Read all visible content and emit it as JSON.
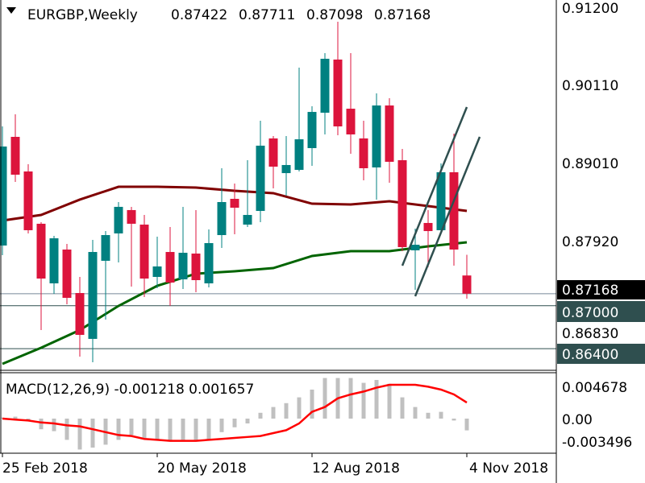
{
  "header": {
    "symbol_timeframe": "EURGBP,Weekly",
    "open": "0.87422",
    "high": "0.87711",
    "low": "0.87098",
    "close": "0.87168",
    "menu_icon": "triangle-down-icon"
  },
  "colors": {
    "bull": "#008080",
    "bear": "#DC143C",
    "ma_slow": "#800000",
    "ma_fast": "#006400",
    "macd_signal": "#FF0000",
    "macd_histogram": "#C0C0C0",
    "hline": "#2F4F4F",
    "bid_line": "#778899",
    "bid_tag": "#000000"
  },
  "price_axis": {
    "ticks": [
      "0.91200",
      "0.90110",
      "0.89010",
      "0.87920",
      "0.86830"
    ],
    "tags": [
      {
        "label": "0.87168",
        "kind": "bid"
      },
      {
        "label": "0.87000",
        "kind": "level"
      },
      {
        "label": "0.86400",
        "kind": "level"
      }
    ]
  },
  "macd_panel": {
    "title": "MACD(12,26,9) -0.001218 0.001657",
    "ticks": [
      "0.004678",
      "0.00",
      "-0.003496"
    ]
  },
  "time_axis": {
    "labels": [
      "25 Feb 2018",
      "20 May 2018",
      "12 Aug 2018",
      "4 Nov 2018"
    ]
  },
  "chart_data": {
    "type": "candlestick",
    "symbol": "EURGBP",
    "timeframe": "Weekly",
    "ylim": [
      0.8605,
      0.9125
    ],
    "candles": [
      {
        "date": "2018-02-25",
        "o": 0.8784,
        "h": 0.89503,
        "l": 0.87705,
        "c": 0.89222
      },
      {
        "date": "2018-03-04",
        "o": 0.89357,
        "h": 0.89672,
        "l": 0.88728,
        "c": 0.88829
      },
      {
        "date": "2018-03-11",
        "o": 0.88874,
        "h": 0.88975,
        "l": 0.88009,
        "c": 0.88054
      },
      {
        "date": "2018-03-18",
        "o": 0.88144,
        "h": 0.88166,
        "l": 0.8666,
        "c": 0.87379
      },
      {
        "date": "2018-03-25",
        "o": 0.87312,
        "h": 0.87975,
        "l": 0.87166,
        "c": 0.87941
      },
      {
        "date": "2018-04-01",
        "o": 0.87784,
        "h": 0.87863,
        "l": 0.8702,
        "c": 0.8711
      },
      {
        "date": "2018-04-08",
        "o": 0.87177,
        "h": 0.87402,
        "l": 0.86289,
        "c": 0.86593
      },
      {
        "date": "2018-04-15",
        "o": 0.86537,
        "h": 0.87919,
        "l": 0.86211,
        "c": 0.8775
      },
      {
        "date": "2018-04-22",
        "o": 0.87627,
        "h": 0.88042,
        "l": 0.86806,
        "c": 0.87986
      },
      {
        "date": "2018-04-29",
        "o": 0.88009,
        "h": 0.88447,
        "l": 0.87604,
        "c": 0.8838
      },
      {
        "date": "2018-05-06",
        "o": 0.88335,
        "h": 0.8838,
        "l": 0.87267,
        "c": 0.88144
      },
      {
        "date": "2018-05-13",
        "o": 0.88132,
        "h": 0.88267,
        "l": 0.87121,
        "c": 0.87379
      },
      {
        "date": "2018-05-20",
        "o": 0.87402,
        "h": 0.87964,
        "l": 0.87245,
        "c": 0.87548
      },
      {
        "date": "2018-05-27",
        "o": 0.8775,
        "h": 0.88099,
        "l": 0.86997,
        "c": 0.87323
      },
      {
        "date": "2018-06-03",
        "o": 0.87368,
        "h": 0.8838,
        "l": 0.87233,
        "c": 0.87739
      },
      {
        "date": "2018-06-10",
        "o": 0.87728,
        "h": 0.88335,
        "l": 0.87188,
        "c": 0.87357
      },
      {
        "date": "2018-06-17",
        "o": 0.87312,
        "h": 0.88065,
        "l": 0.87256,
        "c": 0.87874
      },
      {
        "date": "2018-06-24",
        "o": 0.87986,
        "h": 0.88919,
        "l": 0.87806,
        "c": 0.88447
      },
      {
        "date": "2018-07-01",
        "o": 0.88492,
        "h": 0.88705,
        "l": 0.87997,
        "c": 0.88368
      },
      {
        "date": "2018-07-08",
        "o": 0.88132,
        "h": 0.89031,
        "l": 0.88099,
        "c": 0.88267
      },
      {
        "date": "2018-07-15",
        "o": 0.88323,
        "h": 0.89582,
        "l": 0.88166,
        "c": 0.89234
      },
      {
        "date": "2018-07-22",
        "o": 0.89335,
        "h": 0.89368,
        "l": 0.88638,
        "c": 0.88941
      },
      {
        "date": "2018-07-29",
        "o": 0.88851,
        "h": 0.89368,
        "l": 0.88537,
        "c": 0.88964
      },
      {
        "date": "2018-08-05",
        "o": 0.88896,
        "h": 0.90324,
        "l": 0.88874,
        "c": 0.89323
      },
      {
        "date": "2018-08-12",
        "o": 0.892,
        "h": 0.89784,
        "l": 0.88953,
        "c": 0.89705
      },
      {
        "date": "2018-08-19",
        "o": 0.89694,
        "h": 0.90526,
        "l": 0.89391,
        "c": 0.90447
      },
      {
        "date": "2018-08-26",
        "o": 0.90436,
        "h": 0.90964,
        "l": 0.8938,
        "c": 0.89503
      },
      {
        "date": "2018-09-02",
        "o": 0.8975,
        "h": 0.90526,
        "l": 0.89121,
        "c": 0.89391
      },
      {
        "date": "2018-09-09",
        "o": 0.89335,
        "h": 0.89582,
        "l": 0.8875,
        "c": 0.88919
      },
      {
        "date": "2018-09-16",
        "o": 0.8893,
        "h": 0.89964,
        "l": 0.88481,
        "c": 0.89795
      },
      {
        "date": "2018-09-23",
        "o": 0.89795,
        "h": 0.89897,
        "l": 0.88717,
        "c": 0.89009
      },
      {
        "date": "2018-09-30",
        "o": 0.89031,
        "h": 0.89189,
        "l": 0.87761,
        "c": 0.87818
      },
      {
        "date": "2018-10-07",
        "o": 0.87773,
        "h": 0.88076,
        "l": 0.87222,
        "c": 0.87851
      },
      {
        "date": "2018-10-14",
        "o": 0.88155,
        "h": 0.88335,
        "l": 0.87537,
        "c": 0.88042
      },
      {
        "date": "2018-10-21",
        "o": 0.88054,
        "h": 0.88986,
        "l": 0.88009,
        "c": 0.88863
      },
      {
        "date": "2018-10-28",
        "o": 0.88863,
        "h": 0.89402,
        "l": 0.87559,
        "c": 0.87784
      },
      {
        "date": "2018-11-04",
        "o": 0.87422,
        "h": 0.87711,
        "l": 0.87098,
        "c": 0.87168
      }
    ],
    "moving_averages": [
      {
        "color_key": "ma_slow",
        "points": [
          {
            "date": "2018-02-25",
            "v": 0.88188
          },
          {
            "date": "2018-03-18",
            "v": 0.88267
          },
          {
            "date": "2018-04-08",
            "v": 0.88481
          },
          {
            "date": "2018-04-29",
            "v": 0.8866
          },
          {
            "date": "2018-05-20",
            "v": 0.8866
          },
          {
            "date": "2018-06-10",
            "v": 0.88649
          },
          {
            "date": "2018-07-01",
            "v": 0.88604
          },
          {
            "date": "2018-07-22",
            "v": 0.88571
          },
          {
            "date": "2018-08-12",
            "v": 0.88424
          },
          {
            "date": "2018-09-02",
            "v": 0.88413
          },
          {
            "date": "2018-09-23",
            "v": 0.88458
          },
          {
            "date": "2018-10-14",
            "v": 0.88391
          },
          {
            "date": "2018-11-04",
            "v": 0.88323
          }
        ]
      },
      {
        "color_key": "ma_fast",
        "points": [
          {
            "date": "2018-02-25",
            "v": 0.86188
          },
          {
            "date": "2018-03-18",
            "v": 0.86413
          },
          {
            "date": "2018-04-08",
            "v": 0.8666
          },
          {
            "date": "2018-04-29",
            "v": 0.86997
          },
          {
            "date": "2018-05-20",
            "v": 0.87278
          },
          {
            "date": "2018-06-10",
            "v": 0.87447
          },
          {
            "date": "2018-07-01",
            "v": 0.87481
          },
          {
            "date": "2018-07-22",
            "v": 0.87525
          },
          {
            "date": "2018-08-12",
            "v": 0.87694
          },
          {
            "date": "2018-09-02",
            "v": 0.87761
          },
          {
            "date": "2018-09-23",
            "v": 0.87761
          },
          {
            "date": "2018-10-14",
            "v": 0.87829
          },
          {
            "date": "2018-11-04",
            "v": 0.87885
          }
        ]
      }
    ],
    "horizontal_lines": [
      {
        "price": 0.87168,
        "kind": "bid"
      },
      {
        "price": 0.87,
        "kind": "level"
      },
      {
        "price": 0.864,
        "kind": "level"
      }
    ],
    "trend_lines": [
      {
        "from": {
          "date": "2018-09-30",
          "price": 0.87559
        },
        "to": {
          "date": "2018-11-04",
          "price": 0.89773
        }
      },
      {
        "from": {
          "date": "2018-10-07",
          "price": 0.87132
        },
        "to": {
          "date": "2018-11-11",
          "price": 0.89357
        }
      }
    ],
    "macd": {
      "params": "12,26,9",
      "ylim": [
        -0.003496,
        0.004678
      ],
      "histogram": [
        0.0001,
        0.0002,
        -0.00025,
        -0.0011,
        -0.0013,
        -0.0022,
        -0.0032,
        -0.003,
        -0.0027,
        -0.0022,
        -0.0017,
        -0.002,
        -0.0022,
        -0.0023,
        -0.0022,
        -0.0022,
        -0.0022,
        -0.0014,
        -0.0009,
        -0.0005,
        0.0006,
        0.0012,
        0.0016,
        0.0022,
        0.003,
        0.0042,
        0.0042,
        0.0042,
        0.0037,
        0.004,
        0.0036,
        0.0022,
        0.0012,
        0.0006,
        0.0007,
        -0.0002,
        -0.001218
      ],
      "signal": [
        0,
        -0.0001,
        -0.0002,
        -0.0004,
        -0.0005,
        -0.0007,
        -0.0008,
        -0.0011,
        -0.0014,
        -0.0017,
        -0.0018,
        -0.0021,
        -0.0022,
        -0.0023,
        -0.0023,
        -0.0023,
        -0.0022,
        -0.0021,
        -0.002,
        -0.0019,
        -0.0018,
        -0.0015,
        -0.0012,
        -0.0005,
        0.0007,
        0.0012,
        0.0021,
        0.0025,
        0.0028,
        0.0032,
        0.0035,
        0.0035,
        0.0035,
        0.0033,
        0.003,
        0.0025,
        0.001657
      ]
    }
  }
}
